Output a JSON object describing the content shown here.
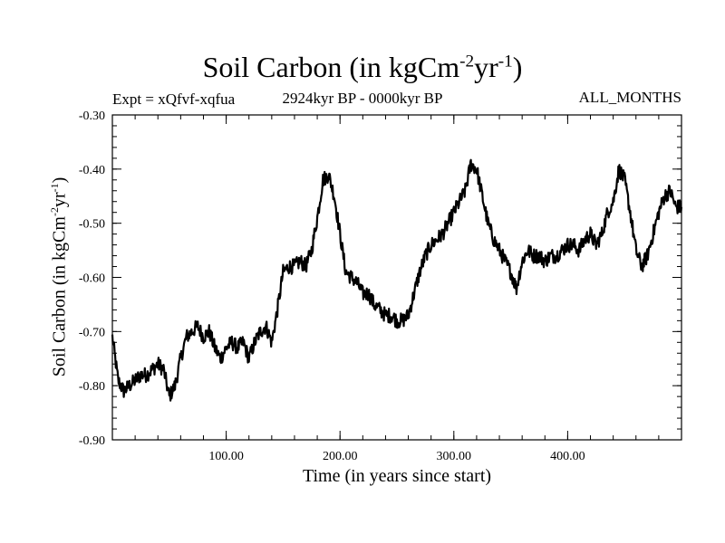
{
  "chart_data": {
    "type": "line",
    "title_main": "Soil Carbon (in kgCm",
    "title_sup1": "-2",
    "title_mid": "yr",
    "title_sup2": "-1",
    "title_end": ")",
    "subtitle_left": "Expt = xQfvf-xqfua",
    "subtitle_center": "2924kyr BP - 0000kyr BP",
    "subtitle_right": "ALL_MONTHS",
    "xlabel": "Time (in years since start)",
    "ylabel_main": "Soil Carbon (in kgCm",
    "ylabel_sup1": "-2",
    "ylabel_mid": "yr",
    "ylabel_sup2": "-1",
    "ylabel_end": ")",
    "xlim": [
      0,
      500
    ],
    "ylim": [
      -0.9,
      -0.3
    ],
    "x_ticks": [
      100,
      200,
      300,
      400
    ],
    "x_tick_labels": [
      "100.00",
      "200.00",
      "300.00",
      "400.00"
    ],
    "y_ticks": [
      -0.3,
      -0.4,
      -0.5,
      -0.6,
      -0.7,
      -0.8,
      -0.9
    ],
    "y_tick_labels": [
      "-0.30",
      "-0.40",
      "-0.50",
      "-0.60",
      "-0.70",
      "-0.80",
      "-0.90"
    ],
    "series": [
      {
        "name": "Soil Carbon",
        "x": [
          0,
          5,
          10,
          15,
          20,
          25,
          30,
          35,
          40,
          45,
          50,
          55,
          60,
          65,
          70,
          75,
          80,
          85,
          90,
          95,
          100,
          105,
          110,
          115,
          120,
          125,
          130,
          135,
          140,
          145,
          150,
          155,
          160,
          165,
          170,
          175,
          180,
          185,
          190,
          195,
          200,
          205,
          210,
          215,
          220,
          225,
          230,
          235,
          240,
          245,
          250,
          255,
          260,
          265,
          270,
          275,
          280,
          285,
          290,
          295,
          300,
          305,
          310,
          315,
          320,
          325,
          330,
          335,
          340,
          345,
          350,
          355,
          360,
          365,
          370,
          375,
          380,
          385,
          390,
          395,
          400,
          405,
          410,
          415,
          420,
          425,
          430,
          435,
          440,
          445,
          450,
          455,
          460,
          465,
          470,
          475,
          480,
          485,
          490,
          495,
          500
        ],
        "values": [
          -0.71,
          -0.79,
          -0.81,
          -0.8,
          -0.79,
          -0.78,
          -0.78,
          -0.77,
          -0.76,
          -0.77,
          -0.82,
          -0.8,
          -0.75,
          -0.71,
          -0.7,
          -0.69,
          -0.71,
          -0.7,
          -0.73,
          -0.75,
          -0.73,
          -0.72,
          -0.73,
          -0.72,
          -0.75,
          -0.72,
          -0.7,
          -0.69,
          -0.72,
          -0.66,
          -0.59,
          -0.58,
          -0.58,
          -0.57,
          -0.58,
          -0.55,
          -0.49,
          -0.42,
          -0.41,
          -0.45,
          -0.52,
          -0.59,
          -0.6,
          -0.61,
          -0.63,
          -0.63,
          -0.65,
          -0.66,
          -0.67,
          -0.67,
          -0.68,
          -0.68,
          -0.67,
          -0.63,
          -0.59,
          -0.56,
          -0.54,
          -0.53,
          -0.52,
          -0.5,
          -0.48,
          -0.46,
          -0.44,
          -0.39,
          -0.4,
          -0.45,
          -0.5,
          -0.53,
          -0.55,
          -0.57,
          -0.59,
          -0.62,
          -0.57,
          -0.55,
          -0.56,
          -0.56,
          -0.57,
          -0.56,
          -0.56,
          -0.55,
          -0.54,
          -0.54,
          -0.55,
          -0.53,
          -0.52,
          -0.54,
          -0.52,
          -0.48,
          -0.46,
          -0.4,
          -0.42,
          -0.48,
          -0.55,
          -0.58,
          -0.56,
          -0.52,
          -0.48,
          -0.45,
          -0.44,
          -0.47,
          -0.47
        ]
      }
    ]
  }
}
